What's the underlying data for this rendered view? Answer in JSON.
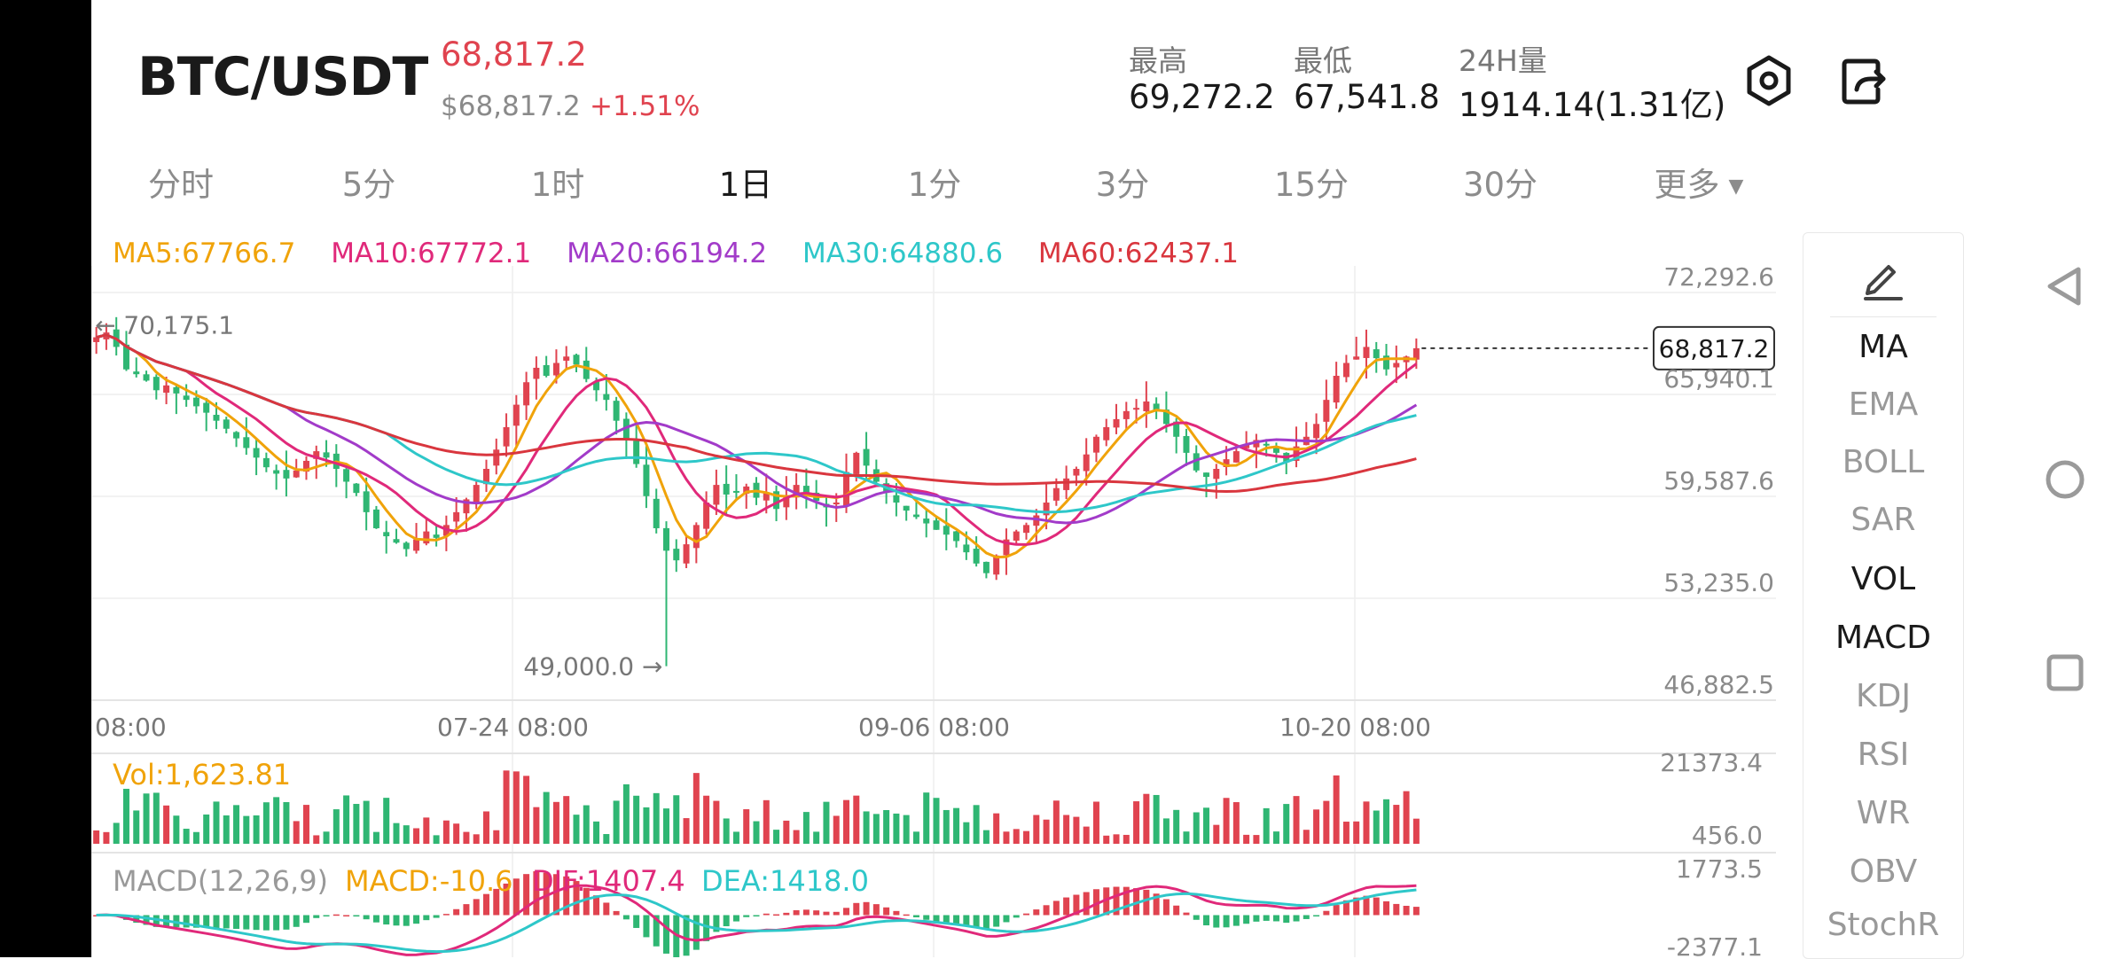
{
  "header": {
    "pair": "BTC/USDT",
    "last_price": "68,817.2",
    "usd_price": "$68,817.2",
    "change": "+1.51%",
    "stats": [
      {
        "label": "最高",
        "value": "69,272.2"
      },
      {
        "label": "最低",
        "value": "67,541.8"
      },
      {
        "label": "24H量",
        "value": "1914.14(1.31亿)"
      }
    ],
    "icons": [
      "settings-hexagon-icon",
      "share-icon"
    ]
  },
  "tabs": [
    {
      "label": "分时"
    },
    {
      "label": "5分"
    },
    {
      "label": "1时"
    },
    {
      "label": "1日",
      "active": true
    },
    {
      "label": "1分"
    },
    {
      "label": "3分"
    },
    {
      "label": "15分"
    },
    {
      "label": "30分"
    },
    {
      "label": "更多"
    }
  ],
  "ma_legend": [
    {
      "label": "MA5:67766.7",
      "color": "#f0a30a"
    },
    {
      "label": "MA10:67772.1",
      "color": "#e0297a"
    },
    {
      "label": "MA20:66194.2",
      "color": "#a23bc9"
    },
    {
      "label": "MA30:64880.6",
      "color": "#2ec7c9"
    },
    {
      "label": "MA60:62437.1",
      "color": "#d9363e"
    }
  ],
  "colors": {
    "up": "#e0434f",
    "down": "#2fb673",
    "grid": "#eeeeee",
    "axis_text": "#8a8a8a"
  },
  "chart_data": {
    "type": "candlestick",
    "price_axis": [
      "72,292.6",
      "65,940.1",
      "59,587.6",
      "53,235.0",
      "46,882.5"
    ],
    "ylim": [
      46882.5,
      72292.6
    ],
    "time_labels": [
      "08:00",
      "07-24 08:00",
      "09-06 08:00",
      "10-20 08:00"
    ],
    "current_price_tag": "68,817.2",
    "high_marker": "← 70,175.1",
    "low_marker": "49,000.0 →",
    "close_series": [
      69500,
      69800,
      68900,
      67500,
      67200,
      66800,
      66200,
      66500,
      66000,
      65600,
      65200,
      64800,
      64300,
      63800,
      63200,
      62600,
      62000,
      61400,
      61000,
      60700,
      61200,
      61800,
      62400,
      62000,
      61300,
      60500,
      59800,
      58600,
      57600,
      57100,
      56700,
      56300,
      56900,
      57400,
      57000,
      57800,
      58600,
      59400,
      60300,
      61300,
      62500,
      63900,
      65300,
      66700,
      67600,
      67100,
      67900,
      68300,
      67800,
      66900,
      66200,
      65600,
      64300,
      63100,
      61600,
      59600,
      57600,
      56200,
      55600,
      56600,
      57800,
      59200,
      60300,
      59700,
      59900,
      60200,
      59500,
      59800,
      58800,
      59600,
      60300,
      59800,
      59300,
      58900,
      59200,
      61100,
      62300,
      61500,
      60500,
      59800,
      59200,
      58700,
      58300,
      57900,
      57500,
      57200,
      56800,
      56100,
      55400,
      54800,
      55900,
      56900,
      57400,
      57800,
      58400,
      59200,
      60100,
      60700,
      61300,
      62200,
      63300,
      63900,
      64400,
      64900,
      65100,
      65500,
      64900,
      64100,
      63300,
      62300,
      61200,
      60800,
      61300,
      61900,
      62400,
      62800,
      63100,
      62800,
      62300,
      61700,
      62700,
      63300,
      64100,
      65600,
      67100,
      67900,
      68300,
      68900,
      68200,
      67500,
      67900,
      68300,
      68817.2
    ],
    "volume": {
      "label": "Vol:1,623.81",
      "axis": [
        "21373.4",
        "456.0"
      ]
    },
    "macd": {
      "label_params": "MACD(12,26,9)",
      "label_macd": "MACD:-10.6",
      "label_dif": "DIF:1407.4",
      "label_dea": "DEA:1418.0",
      "axis": [
        "1773.5",
        "-2377.1"
      ]
    }
  },
  "indicators": [
    {
      "label": "MA",
      "active": true
    },
    {
      "label": "EMA"
    },
    {
      "label": "BOLL"
    },
    {
      "label": "SAR"
    },
    {
      "label": "VOL",
      "active": true
    },
    {
      "label": "MACD",
      "active": true
    },
    {
      "label": "KDJ"
    },
    {
      "label": "RSI"
    },
    {
      "label": "WR"
    },
    {
      "label": "OBV"
    },
    {
      "label": "StochR"
    }
  ],
  "system_nav": [
    "back-triangle-icon",
    "home-circle-icon",
    "recents-square-icon"
  ]
}
